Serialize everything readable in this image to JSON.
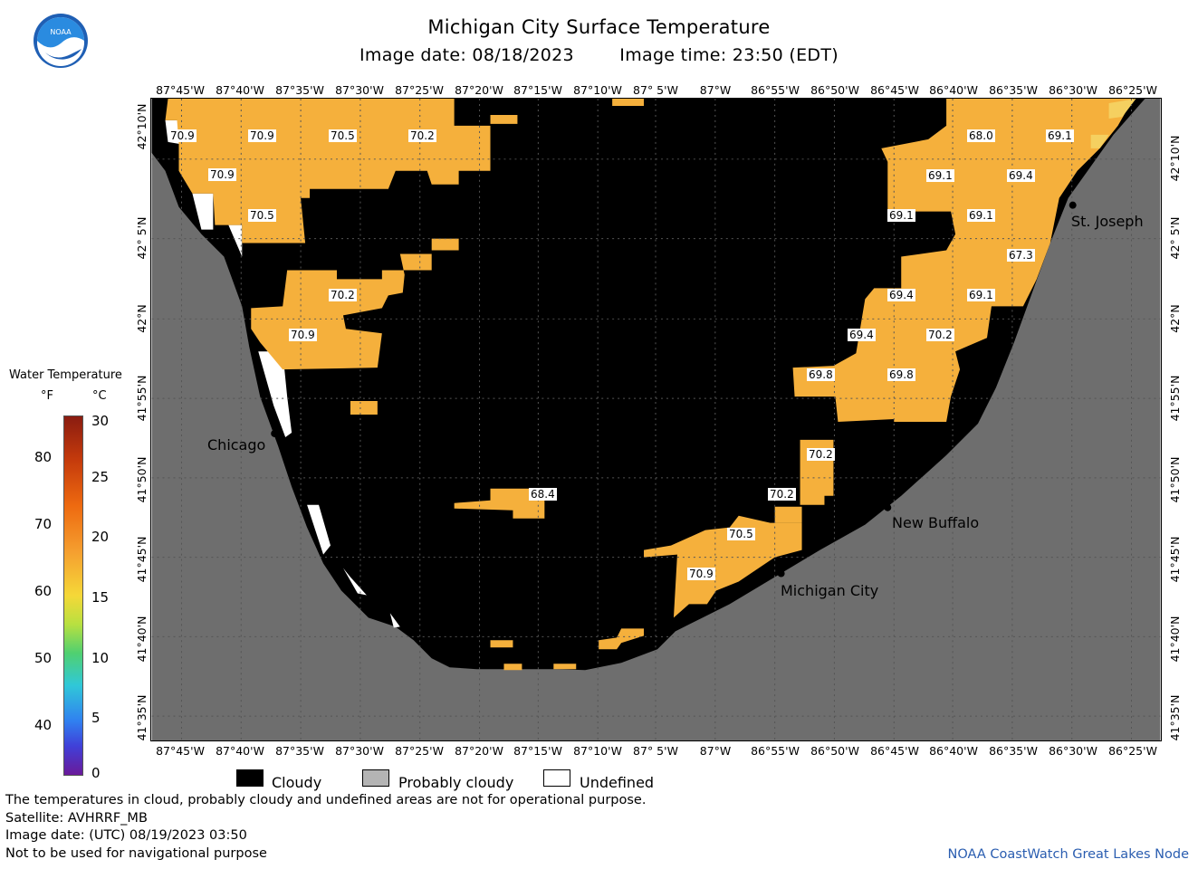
{
  "header": {
    "title": "Michigan City Surface Temperature",
    "image_date": "Image date: 08/18/2023",
    "image_time": "Image time: 23:50 (EDT)",
    "logo_text": "NOAA"
  },
  "longitude_labels": [
    "87°45'W",
    "87°40'W",
    "87°35'W",
    "87°30'W",
    "87°25'W",
    "87°20'W",
    "87°15'W",
    "87°10'W",
    "87° 5'W",
    "87°W",
    "86°55'W",
    "86°50'W",
    "86°45'W",
    "86°40'W",
    "86°35'W",
    "86°30'W",
    "86°25'W"
  ],
  "latitude_labels": [
    "42°10'N",
    "42° 5'N",
    "42°N",
    "41°55'N",
    "41°50'N",
    "41°45'N",
    "41°40'N",
    "41°35'N"
  ],
  "places": {
    "chicago": "Chicago",
    "st_joseph": "St. Joseph",
    "new_buffalo": "New Buffalo",
    "michigan_city": "Michigan City"
  },
  "temperature_labels": [
    "70.9",
    "70.9",
    "70.5",
    "70.2",
    "70.9",
    "70.5",
    "70.2",
    "70.9",
    "68.4",
    "68.0",
    "69.1",
    "69.1",
    "69.4",
    "69.1",
    "69.1",
    "67.3",
    "69.4",
    "69.1",
    "69.4",
    "70.2",
    "69.8",
    "69.8",
    "70.2",
    "70.2",
    "70.5",
    "70.9"
  ],
  "scale": {
    "title": "Water Temperature",
    "unit_f": "°F",
    "unit_c": "°C",
    "f_ticks": [
      "80",
      "70",
      "60",
      "50",
      "40"
    ],
    "c_ticks": [
      "30",
      "25",
      "20",
      "15",
      "10",
      "5",
      "0"
    ]
  },
  "legend": {
    "cloudy": "Cloudy",
    "probably_cloudy": "Probably cloudy",
    "undefined": "Undefined",
    "cloudy_color": "#000000",
    "probably_cloudy_color": "#b4b4b4",
    "undefined_color": "#ffffff"
  },
  "colors": {
    "land": "#6e6e6e",
    "water_warm": "#f5b03c",
    "cloud": "#000000"
  },
  "notes": {
    "line1": "The temperatures in cloud, probably cloudy and undefined areas are not for operational purpose.",
    "line2": "Satellite: AVHRRF_MB",
    "line3": "Image date: (UTC) 08/19/2023  03:50",
    "line4": "Not to be used for navigational purpose",
    "credit": "NOAA CoastWatch Great Lakes Node"
  }
}
